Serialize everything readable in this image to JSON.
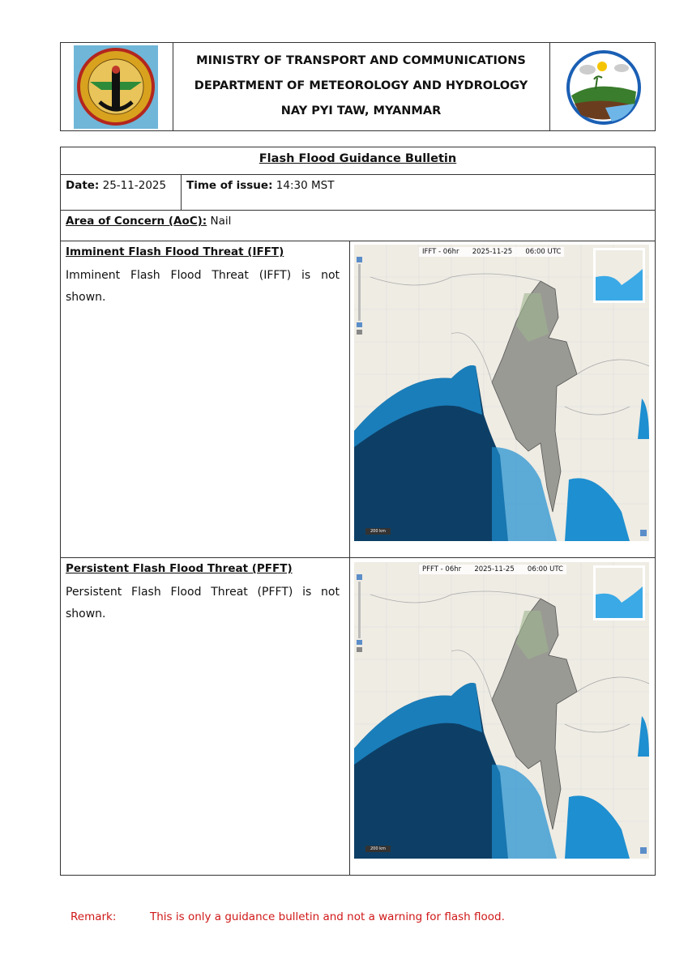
{
  "header": {
    "line1": "MINISTRY OF TRANSPORT AND COMMUNICATIONS",
    "line2": "DEPARTMENT OF METEOROLOGY AND HYDROLOGY",
    "line3": "NAY PYI TAW, MYANMAR"
  },
  "bulletin": {
    "title": "Flash Flood Guidance Bulletin",
    "date_label": "Date:",
    "date": "25-11-2025",
    "time_label": "Time of issue:",
    "time": "14:30 MST",
    "aoc_label": "Area of Concern (AoC):",
    "aoc": "Nail",
    "ifft": {
      "heading": "Imminent Flash Flood Threat (IFFT)",
      "text": "Imminent Flash Flood Threat (IFFT) is not shown.",
      "map_title": "IFFT - 06hr      2025-11-25      06:00 UTC",
      "scale": "200 km"
    },
    "pfft": {
      "heading": "Persistent Flash Flood Threat (PFFT)",
      "text": "Persistent Flash Flood Threat (PFFT) is not shown.",
      "map_title": "PFFT - 06hr      2025-11-25      06:00 UTC",
      "scale": "200 km"
    }
  },
  "remark": {
    "label": "Remark:",
    "text": "This is only a guidance bulletin and not a warning for flash flood."
  },
  "colors": {
    "remark": "#d01818",
    "sea_deep": "#0d3f66",
    "sea_shallow": "#1e8fd0",
    "land": "#efece4"
  }
}
